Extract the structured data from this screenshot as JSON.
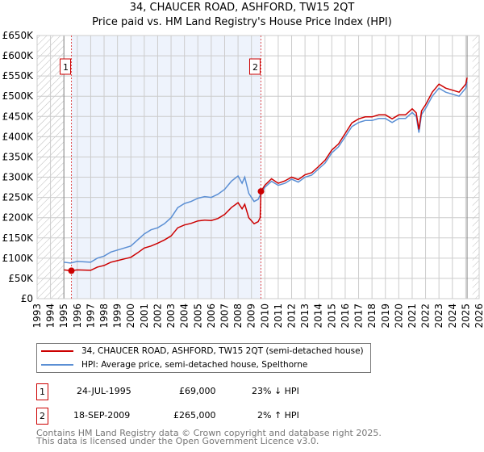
{
  "chart_data": {
    "type": "line",
    "title": "34, CHAUCER ROAD, ASHFORD, TW15 2QT",
    "subtitle": "Price paid vs. HM Land Registry's House Price Index (HPI)",
    "xlim": [
      1993,
      2026
    ],
    "ylim": [
      0,
      650000
    ],
    "x_ticks": [
      "1993",
      "1994",
      "1995",
      "1996",
      "1997",
      "1998",
      "1999",
      "2000",
      "2001",
      "2002",
      "2003",
      "2004",
      "2005",
      "2006",
      "2007",
      "2008",
      "2009",
      "2010",
      "2011",
      "2012",
      "2013",
      "2014",
      "2015",
      "2016",
      "2017",
      "2018",
      "2019",
      "2020",
      "2021",
      "2022",
      "2023",
      "2024",
      "2025",
      "2026"
    ],
    "y_ticks": [
      "£0",
      "£50K",
      "£100K",
      "£150K",
      "£200K",
      "£250K",
      "£300K",
      "£350K",
      "£400K",
      "£450K",
      "£500K",
      "£550K",
      "£600K",
      "£650K"
    ],
    "grid": true,
    "series": [
      {
        "name": "34, CHAUCER ROAD, ASHFORD, TW15 2QT (semi-detached house)",
        "color": "#cc0000",
        "x": [
          1995,
          1995.56,
          1996,
          1997,
          1997.5,
          1998,
          1998.5,
          1999,
          1999.5,
          2000,
          2000.5,
          2001,
          2001.5,
          2002,
          2002.5,
          2003,
          2003.5,
          2004,
          2004.5,
          2005,
          2005.5,
          2006,
          2006.5,
          2007,
          2007.5,
          2008,
          2008.3,
          2008.5,
          2008.8,
          2009.2,
          2009.5,
          2009.65,
          2009.71,
          2010,
          2010.5,
          2011,
          2011.5,
          2012,
          2012.5,
          2013,
          2013.5,
          2014,
          2014.5,
          2015,
          2015.5,
          2016,
          2016.5,
          2017,
          2017.5,
          2018,
          2018.5,
          2019,
          2019.5,
          2020,
          2020.5,
          2021,
          2021.3,
          2021.5,
          2021.7,
          2022,
          2022.5,
          2023,
          2023.5,
          2024,
          2024.5,
          2025,
          2025.1
        ],
        "y": [
          71,
          69,
          71,
          70,
          78,
          82,
          90,
          94,
          98,
          102,
          113,
          125,
          130,
          137,
          145,
          155,
          175,
          182,
          186,
          192,
          194,
          193,
          198,
          208,
          225,
          237,
          222,
          233,
          200,
          185,
          190,
          200,
          265,
          280,
          296,
          285,
          291,
          300,
          294,
          306,
          311,
          326,
          342,
          367,
          382,
          408,
          434,
          444,
          449,
          449,
          454,
          454,
          444,
          454,
          454,
          469,
          459,
          418,
          464,
          479,
          510,
          530,
          520,
          515,
          510,
          530,
          546
        ]
      },
      {
        "name": "HPI: Average price, semi-detached house, Spelthorne",
        "color": "#5b8fd4",
        "x": [
          1995,
          1995.5,
          1996,
          1997,
          1997.5,
          1998,
          1998.5,
          1999,
          1999.5,
          2000,
          2000.5,
          2001,
          2001.5,
          2002,
          2002.5,
          2003,
          2003.5,
          2004,
          2004.5,
          2005,
          2005.5,
          2006,
          2006.5,
          2007,
          2007.5,
          2008,
          2008.3,
          2008.5,
          2008.8,
          2009.2,
          2009.5,
          2009.71,
          2010,
          2010.5,
          2011,
          2011.5,
          2012,
          2012.5,
          2013,
          2013.5,
          2014,
          2014.5,
          2015,
          2015.5,
          2016,
          2016.5,
          2017,
          2017.5,
          2018,
          2018.5,
          2019,
          2019.5,
          2020,
          2020.5,
          2021,
          2021.3,
          2021.5,
          2021.7,
          2022,
          2022.5,
          2023,
          2023.5,
          2024,
          2024.5,
          2025,
          2025.1
        ],
        "y": [
          90,
          88,
          92,
          90,
          100,
          105,
          115,
          120,
          125,
          130,
          145,
          160,
          170,
          175,
          185,
          200,
          225,
          235,
          240,
          248,
          252,
          250,
          258,
          270,
          290,
          303,
          285,
          300,
          260,
          240,
          245,
          260,
          275,
          290,
          280,
          285,
          295,
          288,
          300,
          305,
          320,
          335,
          360,
          375,
          400,
          425,
          435,
          440,
          440,
          445,
          445,
          435,
          445,
          445,
          460,
          450,
          410,
          455,
          470,
          500,
          520,
          510,
          505,
          500,
          520,
          535
        ]
      }
    ],
    "units": "K GBP",
    "shaded_range": [
      1995.56,
      2009.71
    ],
    "hatched_ranges": [
      [
        1993,
        1995
      ],
      [
        2025.5,
        2026
      ]
    ],
    "annotations": [
      {
        "label": "1",
        "x": 1995.56,
        "y": 69
      },
      {
        "label": "2",
        "x": 2009.71,
        "y": 265
      }
    ]
  },
  "legend": [
    "34, CHAUCER ROAD, ASHFORD, TW15 2QT (semi-detached house)",
    "HPI: Average price, semi-detached house, Spelthorne"
  ],
  "transactions": [
    {
      "num": "1",
      "date": "24-JUL-1995",
      "price": "£69,000",
      "hpi": "23% ↓ HPI"
    },
    {
      "num": "2",
      "date": "18-SEP-2009",
      "price": "£265,000",
      "hpi": "2% ↑ HPI"
    }
  ],
  "footer": [
    "Contains HM Land Registry data © Crown copyright and database right 2025.",
    "This data is licensed under the Open Government Licence v3.0."
  ]
}
